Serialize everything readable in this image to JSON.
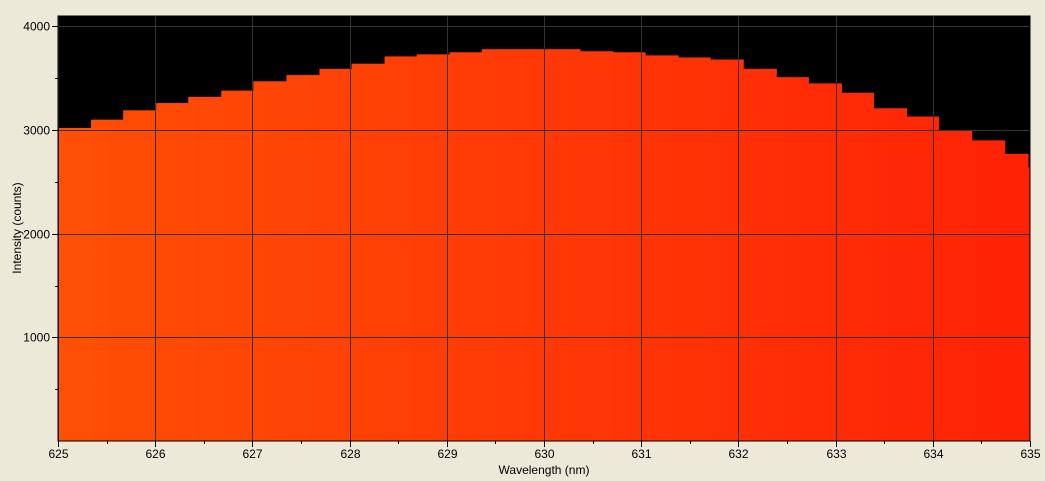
{
  "chart_data": {
    "type": "bar",
    "title": "",
    "xlabel": "Wavelength (nm)",
    "ylabel": "Intensity (counts)",
    "xlim": [
      625,
      635
    ],
    "ylim": [
      0,
      4100
    ],
    "x_ticks": [
      "625",
      "626",
      "627",
      "628",
      "629",
      "630",
      "631",
      "632",
      "633",
      "634",
      "635"
    ],
    "y_ticks": [
      "1000",
      "2000",
      "3000",
      "4000"
    ],
    "grid": true,
    "legend": "none",
    "plot_background": "#000000",
    "fill_gradient": [
      "#ff4f05",
      "#ff2206"
    ],
    "bars": [
      {
        "x0": 625.0,
        "x1": 625.34,
        "y": 3020
      },
      {
        "x0": 625.34,
        "x1": 625.67,
        "y": 3100
      },
      {
        "x0": 625.67,
        "x1": 626.01,
        "y": 3190
      },
      {
        "x0": 626.01,
        "x1": 626.34,
        "y": 3260
      },
      {
        "x0": 626.34,
        "x1": 626.68,
        "y": 3320
      },
      {
        "x0": 626.68,
        "x1": 627.01,
        "y": 3380
      },
      {
        "x0": 627.01,
        "x1": 627.35,
        "y": 3470
      },
      {
        "x0": 627.35,
        "x1": 627.69,
        "y": 3530
      },
      {
        "x0": 627.69,
        "x1": 628.02,
        "y": 3590
      },
      {
        "x0": 628.02,
        "x1": 628.36,
        "y": 3640
      },
      {
        "x0": 628.36,
        "x1": 628.69,
        "y": 3710
      },
      {
        "x0": 628.69,
        "x1": 629.03,
        "y": 3730
      },
      {
        "x0": 629.03,
        "x1": 629.36,
        "y": 3750
      },
      {
        "x0": 629.36,
        "x1": 629.7,
        "y": 3780
      },
      {
        "x0": 629.7,
        "x1": 630.04,
        "y": 3780
      },
      {
        "x0": 630.04,
        "x1": 630.37,
        "y": 3780
      },
      {
        "x0": 630.37,
        "x1": 630.71,
        "y": 3760
      },
      {
        "x0": 630.71,
        "x1": 631.04,
        "y": 3750
      },
      {
        "x0": 631.04,
        "x1": 631.38,
        "y": 3720
      },
      {
        "x0": 631.38,
        "x1": 631.71,
        "y": 3700
      },
      {
        "x0": 631.71,
        "x1": 632.05,
        "y": 3680
      },
      {
        "x0": 632.05,
        "x1": 632.39,
        "y": 3590
      },
      {
        "x0": 632.39,
        "x1": 632.72,
        "y": 3510
      },
      {
        "x0": 632.72,
        "x1": 633.06,
        "y": 3450
      },
      {
        "x0": 633.06,
        "x1": 633.39,
        "y": 3360
      },
      {
        "x0": 633.39,
        "x1": 633.73,
        "y": 3210
      },
      {
        "x0": 633.73,
        "x1": 634.06,
        "y": 3130
      },
      {
        "x0": 634.06,
        "x1": 634.4,
        "y": 3000
      },
      {
        "x0": 634.4,
        "x1": 634.74,
        "y": 2900
      },
      {
        "x0": 634.74,
        "x1": 634.98,
        "y": 2770
      },
      {
        "x0": 634.98,
        "x1": 635.0,
        "y": 2640
      }
    ]
  }
}
